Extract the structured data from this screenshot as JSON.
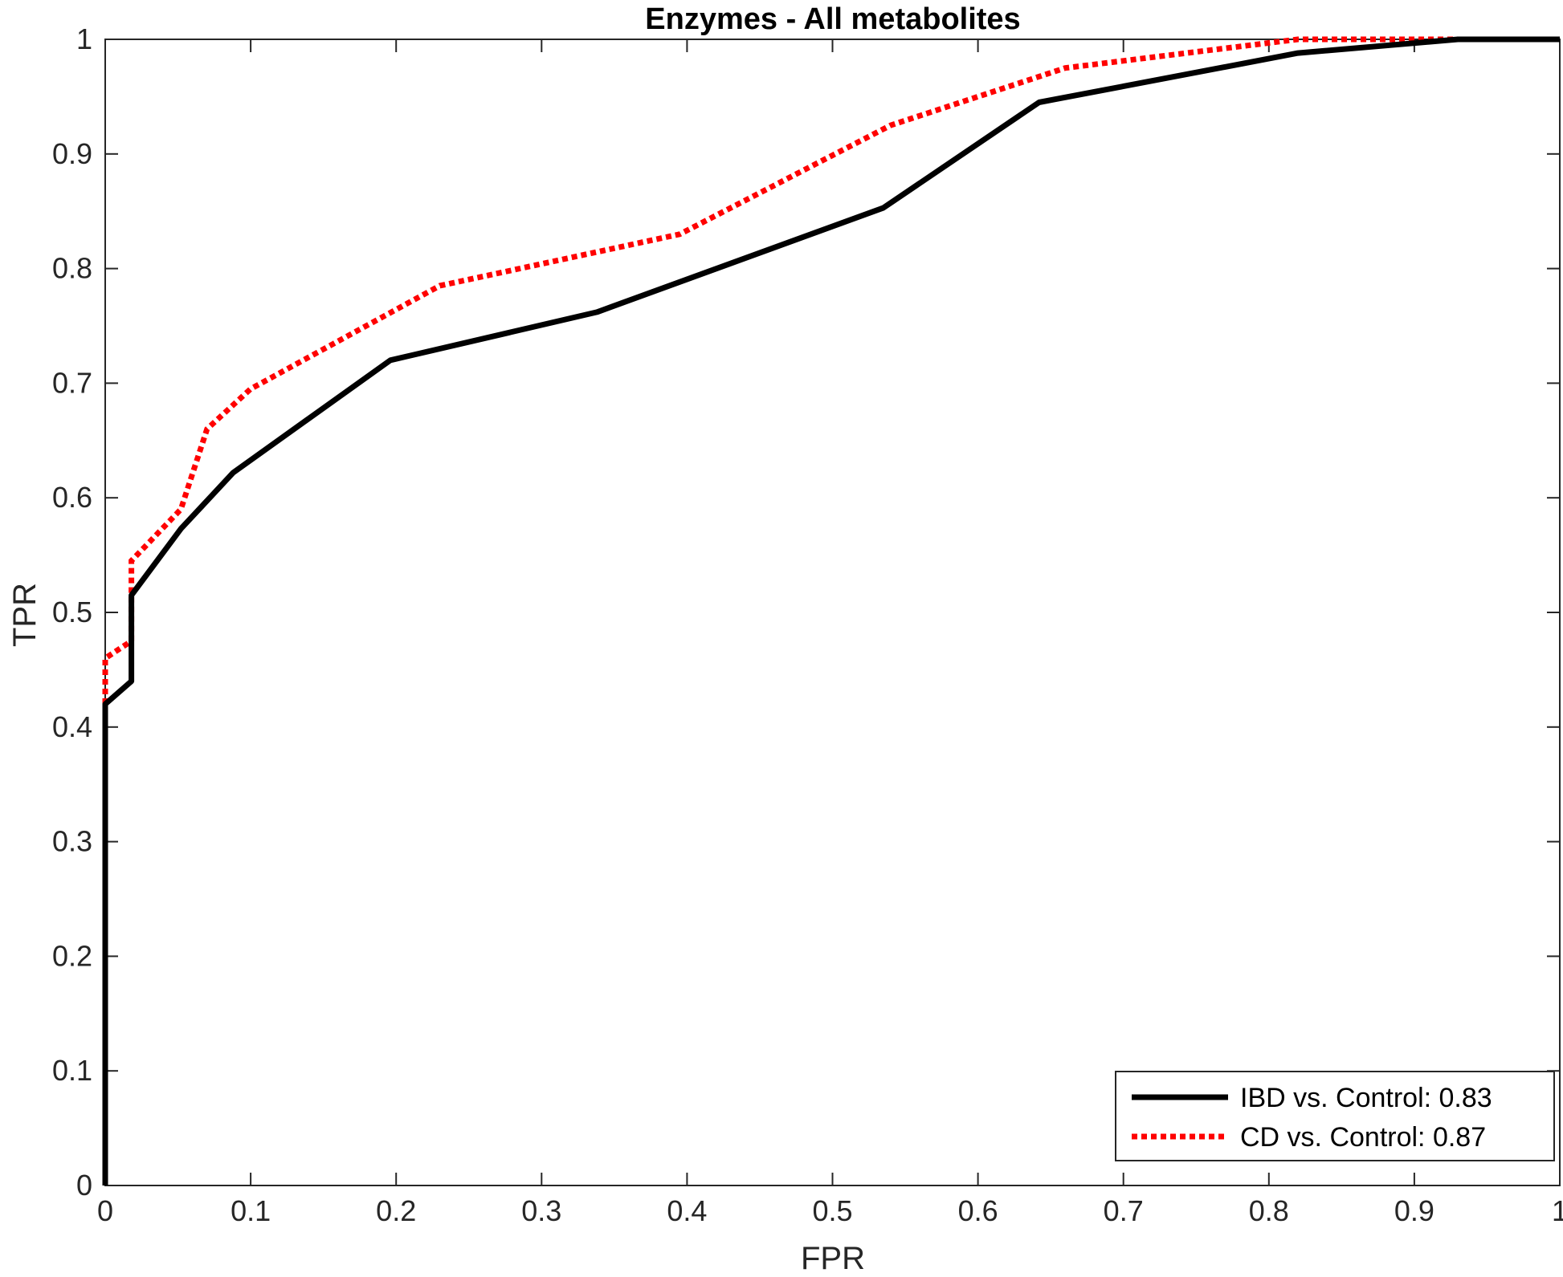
{
  "chart_data": {
    "type": "line",
    "title": "Enzymes - All metabolites",
    "xlabel": "FPR",
    "ylabel": "TPR",
    "xlim": [
      0,
      1
    ],
    "ylim": [
      0,
      1
    ],
    "xticks": [
      0,
      0.1,
      0.2,
      0.3,
      0.4,
      0.5,
      0.6,
      0.7,
      0.8,
      0.9,
      1
    ],
    "xtick_labels": [
      "0",
      "0.1",
      "0.2",
      "0.3",
      "0.4",
      "0.5",
      "0.6",
      "0.7",
      "0.8",
      "0.9",
      "1"
    ],
    "yticks": [
      0,
      0.1,
      0.2,
      0.3,
      0.4,
      0.5,
      0.6,
      0.7,
      0.8,
      0.9,
      1
    ],
    "ytick_labels": [
      "0",
      "0.1",
      "0.2",
      "0.3",
      "0.4",
      "0.5",
      "0.6",
      "0.7",
      "0.8",
      "0.9",
      "1"
    ],
    "grid": false,
    "legend_position": "bottom-right",
    "series": [
      {
        "name": "IBD vs. Control: 0.83",
        "color": "#000000",
        "style": "solid",
        "x": [
          0,
          0,
          0.018,
          0.018,
          0.052,
          0.088,
          0.196,
          0.338,
          0.535,
          0.642,
          0.82,
          0.93,
          1
        ],
        "y": [
          0,
          0.42,
          0.44,
          0.515,
          0.573,
          0.622,
          0.72,
          0.762,
          0.853,
          0.945,
          0.988,
          1,
          1
        ]
      },
      {
        "name": "CD vs. Control: 0.87",
        "color": "#ff0000",
        "style": "dotted",
        "x": [
          0,
          0,
          0.018,
          0.018,
          0.052,
          0.07,
          0.1,
          0.23,
          0.34,
          0.395,
          0.54,
          0.66,
          0.82,
          0.93,
          1
        ],
        "y": [
          0,
          0.46,
          0.475,
          0.545,
          0.59,
          0.66,
          0.695,
          0.785,
          0.815,
          0.83,
          0.925,
          0.975,
          1,
          1,
          1
        ]
      }
    ]
  }
}
